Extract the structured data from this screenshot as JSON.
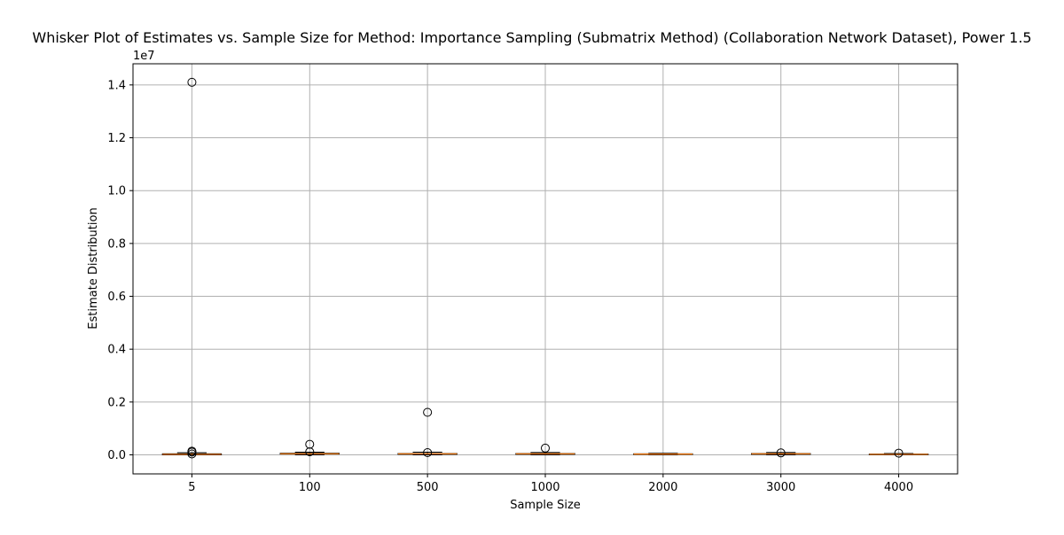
{
  "chart_data": {
    "type": "boxplot",
    "title": "Whisker Plot of Estimates vs. Sample Size for Method: Importance Sampling (Submatrix Method) (Collaboration Network Dataset), Power 1.5",
    "xlabel": "Sample Size",
    "ylabel": "Estimate Distribution",
    "y_offset_label": "1e7",
    "y_scale_multiplier": 10000000,
    "ylim": [
      -0.072,
      1.48
    ],
    "yticks": [
      0.0,
      0.2,
      0.4,
      0.6,
      0.8,
      1.0,
      1.2,
      1.4
    ],
    "ytick_labels": [
      "0.0",
      "0.2",
      "0.4",
      "0.6",
      "0.8",
      "1.0",
      "1.2",
      "1.4"
    ],
    "grid": true,
    "categories": [
      "5",
      "100",
      "500",
      "1000",
      "2000",
      "3000",
      "4000"
    ],
    "boxes": [
      {
        "category": "5",
        "whislo": 0.0,
        "q1": 0.0,
        "median": 0.002,
        "q3": 0.004,
        "whishi": 0.008,
        "fliers": [
          0.0035,
          0.0105,
          0.014,
          1.41
        ]
      },
      {
        "category": "100",
        "whislo": 0.0,
        "q1": 0.003,
        "median": 0.004,
        "q3": 0.006,
        "whishi": 0.01,
        "fliers": [
          0.0115,
          0.04
        ]
      },
      {
        "category": "500",
        "whislo": 0.0,
        "q1": 0.002,
        "median": 0.004,
        "q3": 0.005,
        "whishi": 0.01,
        "fliers": [
          0.0085,
          0.161
        ]
      },
      {
        "category": "1000",
        "whislo": 0.0,
        "q1": 0.002,
        "median": 0.004,
        "q3": 0.005,
        "whishi": 0.009,
        "fliers": [
          0.0255
        ]
      },
      {
        "category": "2000",
        "whislo": 0.0,
        "q1": 0.002,
        "median": 0.003,
        "q3": 0.004,
        "whishi": 0.006,
        "fliers": []
      },
      {
        "category": "3000",
        "whislo": 0.0,
        "q1": 0.002,
        "median": 0.004,
        "q3": 0.005,
        "whishi": 0.009,
        "fliers": [
          0.0075
        ]
      },
      {
        "category": "4000",
        "whislo": 0.0,
        "q1": 0.001,
        "median": 0.002,
        "q3": 0.003,
        "whishi": 0.005,
        "fliers": [
          0.0065
        ]
      }
    ],
    "colors": {
      "box_edge": "#000000",
      "median": "#ff7f0e",
      "flier_edge": "#000000",
      "grid": "#b0b0b0"
    }
  }
}
